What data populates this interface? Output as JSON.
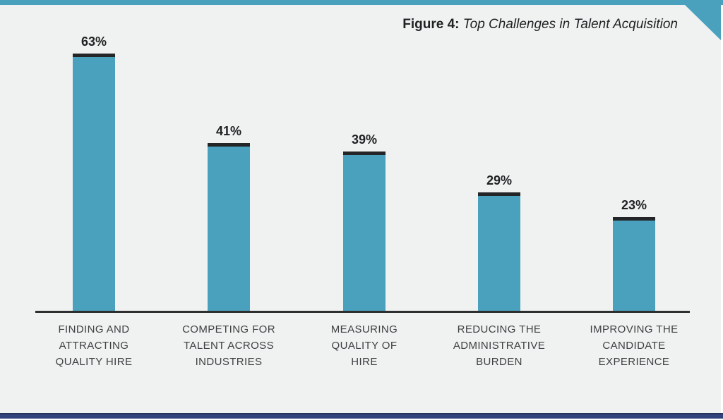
{
  "figure": {
    "title_prefix": "Figure 4:",
    "title_text": "Top Challenges in Talent Acquisition"
  },
  "chart_data": {
    "type": "bar",
    "title": "Figure 4: Top Challenges in Talent Acquisition",
    "categories": [
      "FINDING AND\nATTRACTING\nQUALITY HIRE",
      "COMPETING FOR\nTALENT ACROSS\nINDUSTRIES",
      "MEASURING\nQUALITY OF\nHIRE",
      "REDUCING THE\nADMINISTRATIVE\nBURDEN",
      "IMPROVING THE\nCANDIDATE\nEXPERIENCE"
    ],
    "values": [
      63,
      41,
      39,
      29,
      23
    ],
    "value_labels": [
      "63%",
      "41%",
      "39%",
      "29%",
      "23%"
    ],
    "unit": "%",
    "xlabel": "",
    "ylabel": "",
    "ylim": [
      0,
      70
    ],
    "grid": false,
    "legend": false,
    "colors": {
      "bar": "#49A1BE",
      "bar_cap": "#232527",
      "top_strip": "#49A1BE",
      "corner_triangle": "#49A1BE",
      "bottom_bar": "#32427B",
      "panel_background": "#F0F1F1",
      "axis_line": "#2E2E2E",
      "value_text": "#1F2122",
      "category_text": "#3D3F41"
    }
  }
}
